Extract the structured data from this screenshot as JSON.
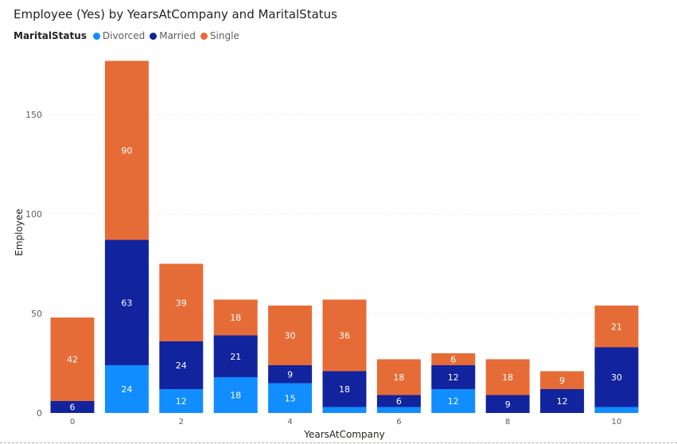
{
  "chart_data": {
    "type": "bar",
    "stacked": true,
    "title": "Employee (Yes) by YearsAtCompany and MaritalStatus",
    "xlabel": "YearsAtCompany",
    "ylabel": "Employee",
    "legend_title": "MaritalStatus",
    "legend_position": "top-left",
    "grid": true,
    "ylim": [
      0,
      178
    ],
    "yticks": [
      0,
      50,
      100,
      150
    ],
    "categories": [
      0,
      1,
      2,
      3,
      4,
      5,
      6,
      7,
      8,
      9,
      10
    ],
    "xtick_labels": [
      "0",
      "",
      "2",
      "",
      "4",
      "",
      "6",
      "",
      "8",
      "",
      "10"
    ],
    "series": [
      {
        "name": "Divorced",
        "color": "#118DFF",
        "values": [
          0,
          24,
          12,
          18,
          15,
          3,
          3,
          12,
          0,
          0,
          3
        ]
      },
      {
        "name": "Married",
        "color": "#12239E",
        "values": [
          6,
          63,
          24,
          21,
          9,
          18,
          6,
          12,
          9,
          12,
          30
        ]
      },
      {
        "name": "Single",
        "color": "#E66C37",
        "values": [
          42,
          90,
          39,
          18,
          30,
          36,
          18,
          6,
          18,
          9,
          21
        ]
      }
    ],
    "data_labels": [
      [
        "",
        "24",
        "12",
        "18",
        "15",
        "",
        "",
        "12",
        "",
        "",
        ""
      ],
      [
        "6",
        "63",
        "24",
        "21",
        "9",
        "18",
        "6",
        "12",
        "9",
        "12",
        "30"
      ],
      [
        "42",
        "90",
        "39",
        "18",
        "30",
        "36",
        "18",
        "6",
        "18",
        "9",
        "21"
      ]
    ]
  }
}
